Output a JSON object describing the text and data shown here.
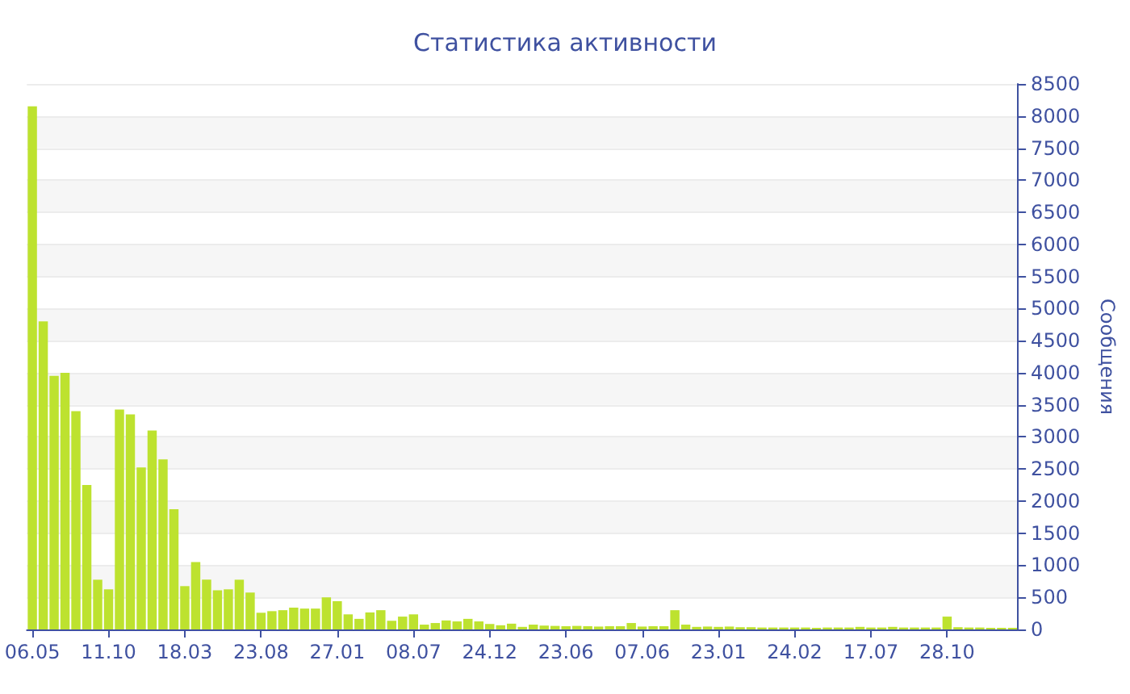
{
  "chart_data": {
    "type": "bar",
    "title": "Статистика активности",
    "ylabel": "Сообщения",
    "categories": [
      "06.05",
      null,
      null,
      null,
      null,
      null,
      null,
      "11.10",
      null,
      null,
      null,
      null,
      null,
      null,
      "18.03",
      null,
      null,
      null,
      null,
      null,
      null,
      "23.08",
      null,
      null,
      null,
      null,
      null,
      null,
      "27.01",
      null,
      null,
      null,
      null,
      null,
      null,
      "08.07",
      null,
      null,
      null,
      null,
      null,
      null,
      "24.12",
      null,
      null,
      null,
      null,
      null,
      null,
      "23.06",
      null,
      null,
      null,
      null,
      null,
      null,
      "07.06",
      null,
      null,
      null,
      null,
      null,
      null,
      "23.01",
      null,
      null,
      null,
      null,
      null,
      null,
      "24.02",
      null,
      null,
      null,
      null,
      null,
      null,
      "17.07",
      null,
      null,
      null,
      null,
      null,
      null,
      "28.10",
      null,
      null,
      null,
      null,
      null,
      null
    ],
    "values": [
      8150,
      4800,
      3950,
      4000,
      3400,
      2250,
      775,
      625,
      3425,
      3350,
      2525,
      3100,
      2650,
      1875,
      675,
      1050,
      775,
      610,
      625,
      775,
      575,
      260,
      285,
      300,
      340,
      325,
      325,
      500,
      440,
      235,
      165,
      265,
      300,
      135,
      200,
      235,
      75,
      100,
      140,
      125,
      165,
      125,
      85,
      65,
      90,
      40,
      75,
      60,
      55,
      50,
      55,
      50,
      45,
      50,
      50,
      100,
      45,
      50,
      50,
      300,
      75,
      40,
      45,
      40,
      45,
      35,
      35,
      30,
      30,
      30,
      30,
      30,
      25,
      30,
      30,
      30,
      40,
      30,
      30,
      40,
      30,
      30,
      30,
      30,
      200,
      35,
      30,
      30,
      25,
      25,
      25
    ],
    "color": "#bde22f",
    "ylim": [
      0,
      8500
    ],
    "yticks": [
      0,
      500,
      1000,
      1500,
      2000,
      2500,
      3000,
      3500,
      4000,
      4500,
      5000,
      5500,
      6000,
      6500,
      7000,
      7500,
      8000,
      8500
    ],
    "grid": "y"
  }
}
